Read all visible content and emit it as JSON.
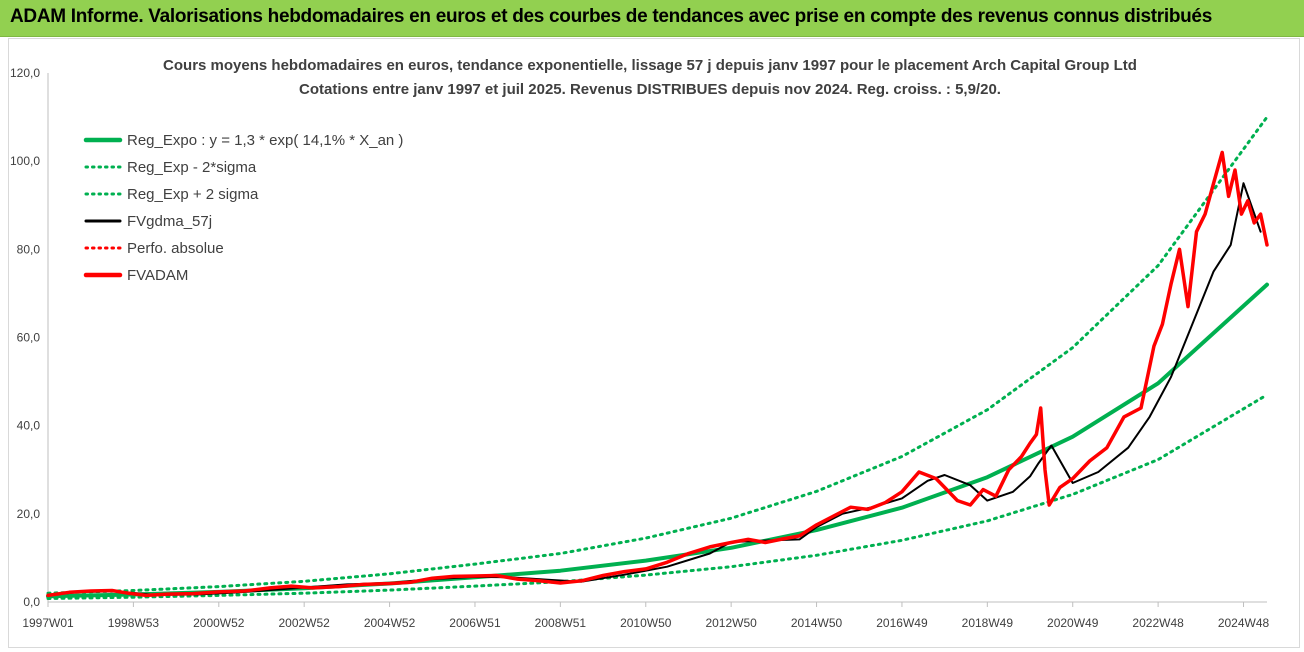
{
  "banner": {
    "title": "ADAM Informe. Valorisations hebdomadaires en euros et des courbes de tendances avec prise en compte des revenus connus distribués",
    "background": "#92d050"
  },
  "chart_data": {
    "type": "line",
    "title_line1": "Cours moyens hebdomadaires en euros, tendance exponentielle, lissage 57 j depuis janv 1997 pour le placement Arch Capital Group Ltd",
    "title_line2": "Cotations entre janv 1997 et juil 2025. Revenus DISTRIBUES depuis nov 2024. Reg. croiss. : 5,9/20.",
    "xlabel": "",
    "ylabel": "",
    "ylim": [
      0,
      120
    ],
    "y_ticks": [
      "0,0",
      "20,0",
      "40,0",
      "60,0",
      "80,0",
      "100,0",
      "120,0"
    ],
    "x_ticks": [
      "1997W01",
      "1998W53",
      "2000W52",
      "2002W52",
      "2004W52",
      "2006W51",
      "2008W51",
      "2010W50",
      "2012W50",
      "2014W50",
      "2016W49",
      "2018W49",
      "2020W49",
      "2022W48",
      "2024W48"
    ],
    "x_tick_years": [
      1997.0,
      1999.0,
      2001.0,
      2003.0,
      2005.0,
      2007.0,
      2009.0,
      2011.0,
      2013.0,
      2015.0,
      2017.0,
      2019.0,
      2021.0,
      2023.0,
      2025.0
    ],
    "xlim": [
      1997.0,
      2025.55
    ],
    "grid": false,
    "legend_position": "top-left",
    "legend": [
      {
        "label": "Reg_Expo : y = 1,3 * exp( 14,1% *  X_an )",
        "color": "#00b050",
        "style": "solid-thick"
      },
      {
        "label": "Reg_Exp - 2*sigma",
        "color": "#00b050",
        "style": "dotted"
      },
      {
        "label": "Reg_Exp + 2 sigma",
        "color": "#00b050",
        "style": "dotted"
      },
      {
        "label": "FVgdma_57j",
        "color": "#000000",
        "style": "solid"
      },
      {
        "label": "Perfo. absolue",
        "color": "#ff0000",
        "style": "dotted"
      },
      {
        "label": "FVADAM",
        "color": "#ff0000",
        "style": "solid-thick"
      }
    ],
    "series": [
      {
        "name": "Reg_Expo : y = 1,3 * exp( 14,1% *  X_an )",
        "color": "#00b050",
        "x": [
          1997.0,
          1999.0,
          2001.0,
          2003.0,
          2005.0,
          2007.0,
          2009.0,
          2011.0,
          2013.0,
          2015.0,
          2017.0,
          2019.0,
          2021.0,
          2023.0,
          2025.55
        ],
        "values": [
          1.3,
          1.7,
          2.3,
          3.1,
          4.2,
          5.6,
          7.1,
          9.4,
          12.3,
          16.3,
          21.4,
          28.3,
          37.5,
          49.6,
          72.0
        ]
      },
      {
        "name": "Reg_Exp - 2*sigma",
        "color": "#00b050",
        "x": [
          1997.0,
          1999.0,
          2001.0,
          2003.0,
          2005.0,
          2007.0,
          2009.0,
          2011.0,
          2013.0,
          2015.0,
          2017.0,
          2019.0,
          2021.0,
          2023.0,
          2025.55
        ],
        "values": [
          0.8,
          1.1,
          1.5,
          2.0,
          2.7,
          3.6,
          4.6,
          6.1,
          8.0,
          10.6,
          14.0,
          18.4,
          24.4,
          32.3,
          47.0
        ]
      },
      {
        "name": "Reg_Exp + 2 sigma",
        "color": "#00b050",
        "x": [
          1997.0,
          1999.0,
          2001.0,
          2003.0,
          2005.0,
          2007.0,
          2009.0,
          2011.0,
          2013.0,
          2015.0,
          2017.0,
          2019.0,
          2021.0,
          2023.0,
          2025.55
        ],
        "values": [
          2.0,
          2.6,
          3.5,
          4.7,
          6.4,
          8.6,
          11.0,
          14.5,
          19.0,
          25.1,
          33.0,
          43.6,
          57.7,
          76.3,
          110.0
        ]
      },
      {
        "name": "FVgdma_57j",
        "color": "#000000",
        "x": [
          1997.0,
          1997.8,
          1998.6,
          1999.5,
          2000.5,
          2001.5,
          2002.3,
          2003.0,
          2004.0,
          2005.0,
          2006.0,
          2007.0,
          2007.8,
          2008.8,
          2009.5,
          2010.5,
          2011.5,
          2012.5,
          2013.0,
          2014.0,
          2014.6,
          2015.0,
          2015.6,
          2016.3,
          2017.0,
          2017.6,
          2018.0,
          2018.6,
          2019.0,
          2019.6,
          2020.0,
          2020.2,
          2020.5,
          2021.0,
          2021.6,
          2022.3,
          2022.8,
          2023.3,
          2023.8,
          2024.3,
          2024.7,
          2025.0,
          2025.4
        ],
        "values": [
          1.6,
          2.3,
          2.4,
          1.6,
          1.7,
          2.2,
          2.8,
          3.3,
          4.0,
          4.3,
          5.2,
          5.7,
          5.6,
          5.0,
          4.6,
          6.2,
          8.0,
          11.0,
          13.6,
          14.0,
          14.2,
          17.0,
          20.0,
          21.5,
          23.5,
          27.5,
          28.8,
          26.5,
          23.0,
          25.0,
          28.5,
          31.5,
          35.5,
          27.0,
          29.5,
          35.0,
          42.0,
          51.0,
          63.0,
          75.0,
          81.0,
          95.0,
          84.0
        ]
      },
      {
        "name": "FVADAM",
        "color": "#ff0000",
        "x": [
          1997.0,
          1997.5,
          1998.0,
          1998.5,
          1998.8,
          1999.3,
          1999.8,
          2000.4,
          2001.0,
          2001.6,
          2002.2,
          2002.7,
          2003.2,
          2003.8,
          2004.4,
          2005.0,
          2005.5,
          2006.0,
          2006.5,
          2007.0,
          2007.5,
          2008.0,
          2008.5,
          2009.0,
          2009.5,
          2010.0,
          2010.5,
          2011.0,
          2011.5,
          2012.0,
          2012.5,
          2013.0,
          2013.4,
          2013.8,
          2014.2,
          2014.6,
          2015.0,
          2015.4,
          2015.8,
          2016.2,
          2016.6,
          2017.0,
          2017.4,
          2017.8,
          2018.0,
          2018.3,
          2018.6,
          2018.9,
          2019.2,
          2019.5,
          2019.8,
          2020.0,
          2020.15,
          2020.25,
          2020.35,
          2020.45,
          2020.7,
          2021.0,
          2021.4,
          2021.8,
          2022.2,
          2022.6,
          2022.9,
          2023.1,
          2023.3,
          2023.5,
          2023.7,
          2023.9,
          2024.1,
          2024.3,
          2024.5,
          2024.65,
          2024.8,
          2024.95,
          2025.1,
          2025.25,
          2025.4,
          2025.55
        ],
        "values": [
          1.5,
          2.2,
          2.5,
          2.6,
          2.1,
          1.5,
          1.8,
          1.9,
          2.3,
          2.5,
          3.2,
          3.6,
          3.2,
          3.5,
          4.0,
          4.2,
          4.5,
          5.4,
          5.8,
          5.9,
          6.0,
          5.2,
          4.8,
          4.3,
          4.8,
          6.0,
          6.9,
          7.5,
          9.0,
          11.0,
          12.5,
          13.5,
          14.2,
          13.5,
          14.3,
          15.0,
          17.5,
          19.5,
          21.5,
          21.0,
          22.5,
          25.0,
          29.5,
          28.0,
          26.0,
          23.0,
          22.0,
          25.5,
          24.0,
          30.0,
          33.0,
          36.0,
          38.0,
          44.0,
          30.0,
          22.0,
          26.0,
          28.0,
          32.0,
          35.0,
          42.0,
          44.0,
          58.0,
          63.0,
          72.0,
          80.0,
          67.0,
          84.0,
          88.0,
          95.0,
          102.0,
          92.0,
          98.0,
          88.0,
          91.0,
          86.0,
          88.0,
          81.0
        ]
      }
    ]
  }
}
